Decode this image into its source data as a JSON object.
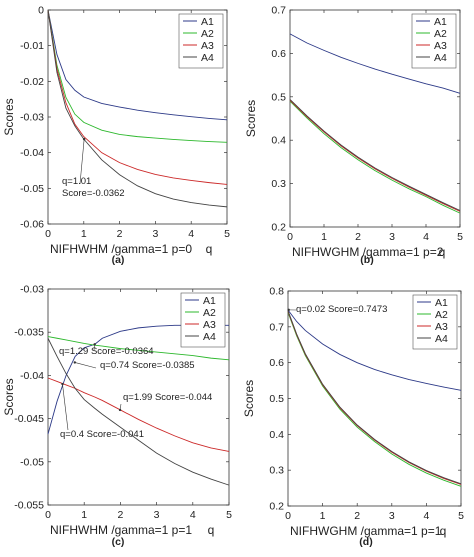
{
  "figure": {
    "panels": [
      {
        "id": "a",
        "caption": "(a)"
      },
      {
        "id": "b",
        "caption": "(b)"
      },
      {
        "id": "c",
        "caption": "(c)"
      },
      {
        "id": "d",
        "caption": "(d)"
      }
    ]
  },
  "chart_data": [
    {
      "type": "line",
      "panel": "a",
      "xlabel": "NIFHWHM /gamma=1 p=0",
      "xunit": "q",
      "ylabel": "Scores",
      "xlim": [
        0,
        5
      ],
      "ylim": [
        -0.06,
        0
      ],
      "xticks": [
        0,
        1,
        2,
        3,
        4,
        5
      ],
      "yticks": [
        0,
        -0.01,
        -0.02,
        -0.03,
        -0.04,
        -0.05,
        -0.06
      ],
      "ytick_labels": [
        "0",
        "-0.01",
        "-0.02",
        "-0.03",
        "-0.04",
        "-0.05",
        "-0.06"
      ],
      "legend_position": "top-right",
      "x": [
        0,
        0.25,
        0.5,
        0.75,
        1,
        1.5,
        2,
        2.5,
        3,
        3.5,
        4,
        4.5,
        5
      ],
      "series": [
        {
          "name": "A1",
          "color": "#2d3a88",
          "values": [
            0,
            -0.0125,
            -0.0195,
            -0.0225,
            -0.0244,
            -0.0262,
            -0.0272,
            -0.0281,
            -0.0288,
            -0.0294,
            -0.0299,
            -0.0304,
            -0.0308
          ]
        },
        {
          "name": "A2",
          "color": "#2db82d",
          "values": [
            0,
            -0.0155,
            -0.0245,
            -0.0292,
            -0.0315,
            -0.0337,
            -0.0349,
            -0.0355,
            -0.0359,
            -0.0363,
            -0.0366,
            -0.0369,
            -0.0371
          ]
        },
        {
          "name": "A3",
          "color": "#cc2a2a",
          "values": [
            0,
            -0.0165,
            -0.026,
            -0.032,
            -0.0355,
            -0.04,
            -0.0428,
            -0.0447,
            -0.0461,
            -0.0471,
            -0.0478,
            -0.0484,
            -0.0489
          ]
        },
        {
          "name": "A4",
          "color": "#444444",
          "values": [
            0,
            -0.0175,
            -0.0275,
            -0.0325,
            -0.0362,
            -0.042,
            -0.0462,
            -0.0493,
            -0.0515,
            -0.053,
            -0.054,
            -0.0547,
            -0.0552
          ]
        }
      ],
      "annotations": [
        {
          "lines": [
            "q=1.01",
            "Score=-0.0362"
          ],
          "x": 1.01,
          "y": -0.0362
        }
      ]
    },
    {
      "type": "line",
      "panel": "b",
      "xlabel": "NIFHWGHM /gamma=1 p=2",
      "xunit": "q",
      "ylabel": "Scores",
      "xlim": [
        0,
        5
      ],
      "ylim": [
        0.2,
        0.7
      ],
      "xticks": [
        0,
        1,
        2,
        3,
        4,
        5
      ],
      "yticks": [
        0.2,
        0.3,
        0.4,
        0.5,
        0.6,
        0.7
      ],
      "ytick_labels": [
        "0.2",
        "0.3",
        "0.4",
        "0.5",
        "0.6",
        "0.7"
      ],
      "legend_position": "top-right",
      "x": [
        0,
        0.5,
        1,
        1.5,
        2,
        2.5,
        3,
        3.5,
        4,
        4.5,
        5
      ],
      "series": [
        {
          "name": "A1",
          "color": "#2d3a88",
          "values": [
            0.645,
            0.624,
            0.607,
            0.591,
            0.577,
            0.564,
            0.552,
            0.541,
            0.53,
            0.52,
            0.508
          ]
        },
        {
          "name": "A2",
          "color": "#2db82d",
          "values": [
            0.49,
            0.451,
            0.415,
            0.383,
            0.355,
            0.33,
            0.308,
            0.288,
            0.27,
            0.25,
            0.232
          ]
        },
        {
          "name": "A3",
          "color": "#cc2a2a",
          "values": [
            0.492,
            0.454,
            0.419,
            0.387,
            0.359,
            0.334,
            0.312,
            0.292,
            0.273,
            0.254,
            0.236
          ]
        },
        {
          "name": "A4",
          "color": "#444444",
          "values": [
            0.494,
            0.456,
            0.421,
            0.389,
            0.361,
            0.336,
            0.314,
            0.294,
            0.275,
            0.256,
            0.238
          ]
        }
      ]
    },
    {
      "type": "line",
      "panel": "c",
      "xlabel": "NIFHWHM /gamma=1 p=1",
      "xunit": "q",
      "ylabel": "Scores",
      "xlim": [
        0,
        5
      ],
      "ylim": [
        -0.055,
        -0.03
      ],
      "xticks": [
        0,
        1,
        2,
        3,
        4,
        5
      ],
      "yticks": [
        -0.03,
        -0.035,
        -0.04,
        -0.045,
        -0.05,
        -0.055
      ],
      "ytick_labels": [
        "-0.03",
        "-0.035",
        "-0.04",
        "-0.045",
        "-0.05",
        "-0.055"
      ],
      "legend_position": "top-right",
      "x": [
        0,
        0.25,
        0.5,
        0.75,
        1,
        1.29,
        1.5,
        2,
        2.5,
        3,
        3.5,
        4,
        4.5,
        5
      ],
      "series": [
        {
          "name": "A1",
          "color": "#2d3a88",
          "values": [
            -0.0468,
            -0.043,
            -0.04,
            -0.0378,
            -0.0368,
            -0.0364,
            -0.0357,
            -0.0349,
            -0.0345,
            -0.0343,
            -0.0342,
            -0.0342,
            -0.0342,
            -0.0342
          ]
        },
        {
          "name": "A2",
          "color": "#2db82d",
          "values": [
            -0.0355,
            -0.0357,
            -0.0359,
            -0.0361,
            -0.0363,
            -0.0365,
            -0.0366,
            -0.0369,
            -0.0371,
            -0.0373,
            -0.0375,
            -0.0377,
            -0.038,
            -0.0382
          ]
        },
        {
          "name": "A3",
          "color": "#cc2a2a",
          "values": [
            -0.0403,
            -0.0407,
            -0.0411,
            -0.0415,
            -0.042,
            -0.0425,
            -0.0429,
            -0.044,
            -0.0451,
            -0.0461,
            -0.047,
            -0.0478,
            -0.0484,
            -0.0488
          ]
        },
        {
          "name": "A4",
          "color": "#444444",
          "values": [
            -0.0357,
            -0.0378,
            -0.0398,
            -0.0415,
            -0.0428,
            -0.0438,
            -0.0445,
            -0.046,
            -0.0475,
            -0.049,
            -0.0502,
            -0.0512,
            -0.052,
            -0.0527
          ]
        }
      ],
      "annotations": [
        {
          "lines": [
            "q=1.29 Score=-0.0364"
          ],
          "x": 1.29,
          "y": -0.0364
        },
        {
          "lines": [
            "q=0.74 Score=-0.0385"
          ],
          "x": 0.74,
          "y": -0.0385
        },
        {
          "lines": [
            "q=1.99 Score=-0.044"
          ],
          "x": 1.99,
          "y": -0.044
        },
        {
          "lines": [
            "q=0.4 Score=-0.041"
          ],
          "x": 0.4,
          "y": -0.041
        }
      ]
    },
    {
      "type": "line",
      "panel": "d",
      "xlabel": "NIFHWGHM /gamma=1 p=1",
      "xunit": "q",
      "ylabel": "Scores",
      "xlim": [
        0,
        5
      ],
      "ylim": [
        0.2,
        0.8
      ],
      "xticks": [
        0,
        1,
        2,
        3,
        4,
        5
      ],
      "yticks": [
        0.2,
        0.3,
        0.4,
        0.5,
        0.6,
        0.7,
        0.8
      ],
      "ytick_labels": [
        "0.2",
        "0.3",
        "0.4",
        "0.5",
        "0.6",
        "0.7",
        "0.8"
      ],
      "legend_position": "top-right",
      "x": [
        0,
        0.25,
        0.5,
        1,
        1.5,
        2,
        2.5,
        3,
        3.5,
        4,
        4.5,
        5
      ],
      "series": [
        {
          "name": "A1",
          "color": "#2d3a88",
          "values": [
            0.747,
            0.715,
            0.69,
            0.652,
            0.623,
            0.6,
            0.581,
            0.566,
            0.553,
            0.542,
            0.532,
            0.523
          ]
        },
        {
          "name": "A2",
          "color": "#2db82d",
          "values": [
            0.74,
            0.675,
            0.62,
            0.535,
            0.47,
            0.42,
            0.38,
            0.345,
            0.316,
            0.292,
            0.272,
            0.255
          ]
        },
        {
          "name": "A3",
          "color": "#cc2a2a",
          "values": [
            0.743,
            0.678,
            0.623,
            0.538,
            0.474,
            0.424,
            0.384,
            0.35,
            0.321,
            0.297,
            0.277,
            0.26
          ]
        },
        {
          "name": "A4",
          "color": "#444444",
          "values": [
            0.745,
            0.68,
            0.625,
            0.54,
            0.476,
            0.426,
            0.386,
            0.352,
            0.323,
            0.299,
            0.279,
            0.262
          ]
        }
      ],
      "annotations": [
        {
          "lines": [
            "q=0.02 Score=0.7473"
          ],
          "x": 0.02,
          "y": 0.7473
        }
      ]
    }
  ]
}
